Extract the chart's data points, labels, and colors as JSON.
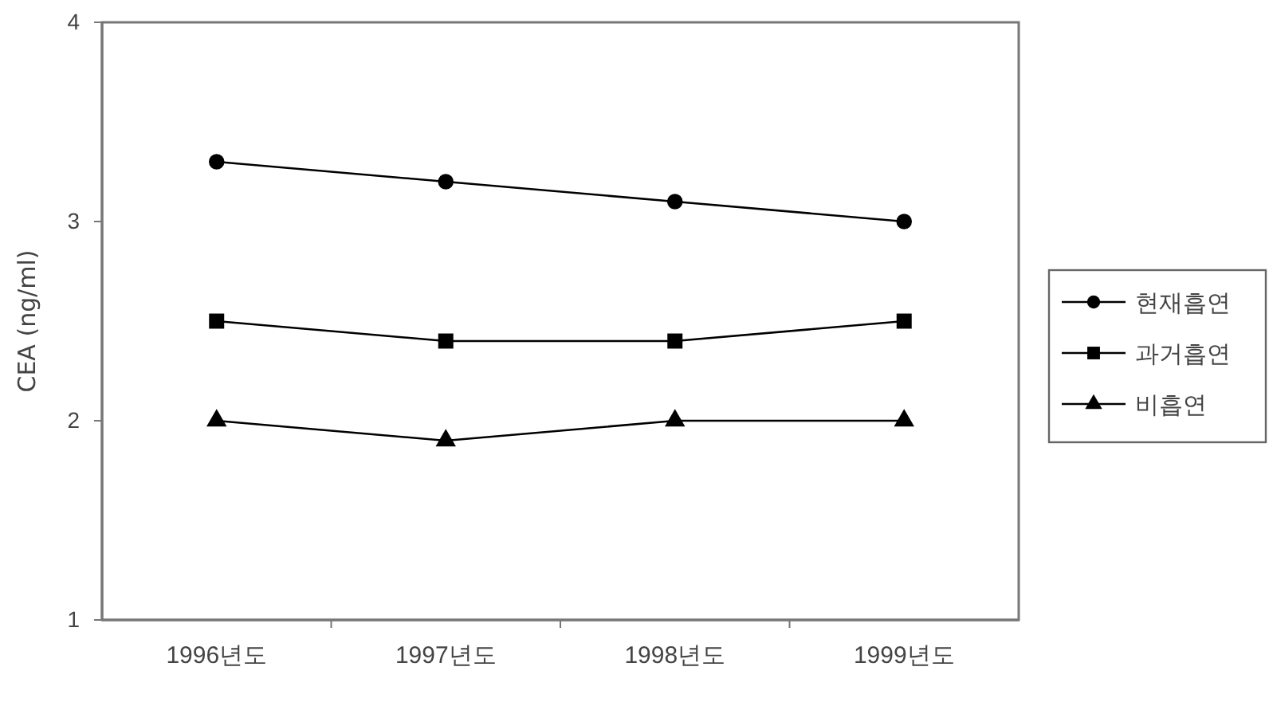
{
  "chart_data": {
    "type": "line",
    "ylabel": "CEA (ng/ml)",
    "categories": [
      "1996년도",
      "1997년도",
      "1998년도",
      "1999년도"
    ],
    "series": [
      {
        "name": "현재흡연",
        "color": "#000000",
        "marker": "circle",
        "values": [
          3.3,
          3.2,
          3.1,
          3.0
        ]
      },
      {
        "name": "과거흡연",
        "color": "#000000",
        "marker": "square",
        "values": [
          2.5,
          2.4,
          2.4,
          2.5
        ]
      },
      {
        "name": "비흡연",
        "color": "#000000",
        "marker": "triangle",
        "values": [
          2.0,
          1.9,
          2.0,
          2.0
        ]
      }
    ],
    "ylim": [
      1,
      4
    ],
    "yticks": [
      1,
      2,
      3,
      4
    ],
    "grid": false,
    "legend": "right",
    "line_style": "solid"
  }
}
